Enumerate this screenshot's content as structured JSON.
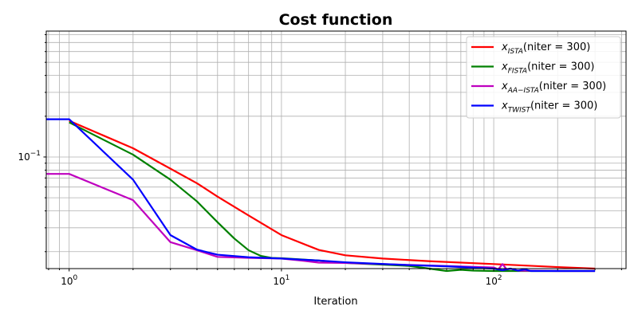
{
  "chart_data": {
    "type": "line",
    "title": "Cost function",
    "xlabel": "Iteration",
    "ylabel": "",
    "xscale": "log",
    "yscale": "log",
    "xlim": [
      0.78,
      420
    ],
    "ylim": [
      0.015,
      0.85
    ],
    "grid": "on",
    "legend_position": "top-right",
    "x_tick_labels": [
      {
        "value": 1,
        "base": "10",
        "exp": "0"
      },
      {
        "value": 10,
        "base": "10",
        "exp": "1"
      },
      {
        "value": 100,
        "base": "10",
        "exp": "2"
      }
    ],
    "y_tick_labels": [
      {
        "value": 0.1,
        "base": "10",
        "exp": "−1"
      }
    ],
    "series": [
      {
        "name": "x_ISTA(niter = 300)",
        "legend": {
          "var": "x",
          "sub": "ISTA",
          "args": "(niter = 300)"
        },
        "color": "#ff0000",
        "x": [
          1,
          2,
          3,
          4,
          5,
          7,
          10,
          15,
          20,
          30,
          50,
          100,
          200,
          300
        ],
        "y": [
          0.185,
          0.116,
          0.082,
          0.064,
          0.051,
          0.037,
          0.0265,
          0.0206,
          0.0188,
          0.0178,
          0.017,
          0.0162,
          0.0154,
          0.015
        ]
      },
      {
        "name": "x_FISTA(niter = 300)",
        "legend": {
          "var": "x",
          "sub": "FISTA",
          "args": "(niter = 300)"
        },
        "color": "#008000",
        "x": [
          1,
          2,
          3,
          4,
          5,
          6,
          7,
          8,
          9,
          10,
          15,
          20,
          40,
          60,
          70,
          80,
          100,
          300
        ],
        "y": [
          0.18,
          0.104,
          0.068,
          0.047,
          0.033,
          0.025,
          0.0205,
          0.0186,
          0.018,
          0.0179,
          0.0172,
          0.0165,
          0.0157,
          0.0144,
          0.0147,
          0.0145,
          0.0144,
          0.0144
        ]
      },
      {
        "name": "x_AA−ISTA(niter = 300)",
        "legend": {
          "var": "x",
          "sub": "AA−ISTA",
          "args": "(niter = 300)"
        },
        "color": "#bf00bf",
        "x": [
          0.78,
          1,
          2,
          3,
          4,
          5,
          7,
          10,
          12,
          15,
          20,
          30,
          50,
          100,
          105,
          110,
          115,
          120,
          130,
          200,
          300
        ],
        "y": [
          0.075,
          0.075,
          0.048,
          0.0235,
          0.0205,
          0.0183,
          0.018,
          0.0178,
          0.0173,
          0.0166,
          0.0165,
          0.0162,
          0.0158,
          0.0153,
          0.0148,
          0.0162,
          0.0148,
          0.015,
          0.0145,
          0.0144,
          0.0144
        ]
      },
      {
        "name": "x_TWIST(niter = 300)",
        "legend": {
          "var": "x",
          "sub": "TWIST",
          "args": "(niter = 300)"
        },
        "color": "#0000ff",
        "x": [
          0.78,
          1,
          2,
          3,
          4,
          5,
          7,
          10,
          15,
          20,
          40,
          60,
          100,
          110,
          120,
          130,
          140,
          150,
          200,
          300
        ],
        "y": [
          0.19,
          0.19,
          0.068,
          0.0265,
          0.0207,
          0.019,
          0.0182,
          0.0178,
          0.0172,
          0.0167,
          0.0159,
          0.0156,
          0.015,
          0.0146,
          0.015,
          0.0145,
          0.0148,
          0.0144,
          0.0144,
          0.0144
        ]
      }
    ]
  }
}
